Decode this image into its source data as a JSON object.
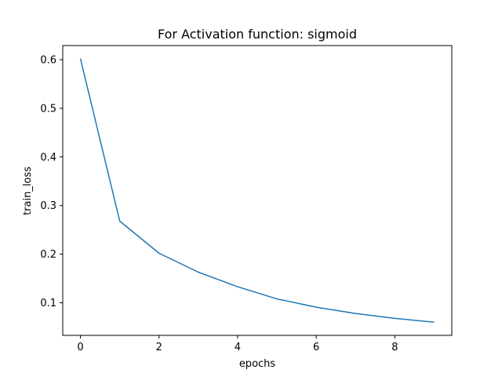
{
  "chart_data": {
    "type": "line",
    "title": "For Activation function: sigmoid",
    "xlabel": "epochs",
    "ylabel": "train_loss",
    "xlim": [
      -0.45,
      9.45
    ],
    "ylim": [
      0.033,
      0.629
    ],
    "xticks": [
      0,
      2,
      4,
      6,
      8
    ],
    "yticks": [
      0.1,
      0.2,
      0.3,
      0.4,
      0.5,
      0.6
    ],
    "grid": false,
    "legend": "none",
    "series": [
      {
        "color": "#1f77b4",
        "x": [
          0,
          1,
          2,
          3,
          4,
          5,
          6,
          7,
          8,
          9
        ],
        "y": [
          0.602,
          0.268,
          0.202,
          0.163,
          0.133,
          0.108,
          0.091,
          0.078,
          0.068,
          0.06
        ]
      }
    ]
  }
}
